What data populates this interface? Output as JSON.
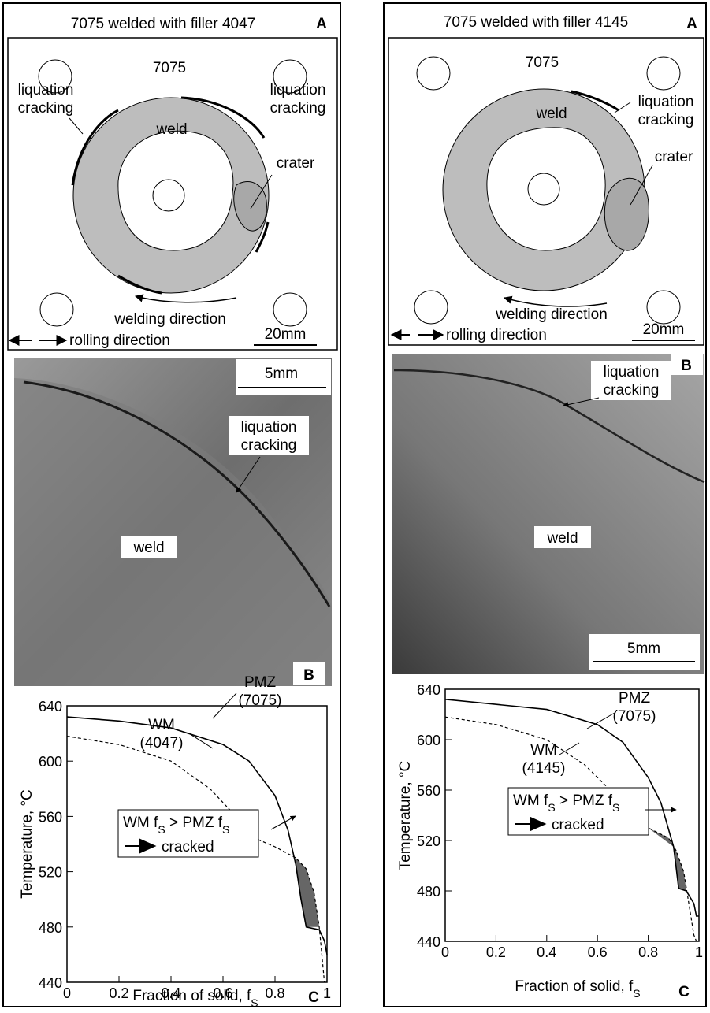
{
  "diagrams": [
    {
      "title": "7075 welded with filler 4047",
      "panel": "A",
      "base": "7075",
      "weld": "weld",
      "crack_left": [
        "liquation",
        "cracking"
      ],
      "crack_right": [
        "liquation",
        "cracking"
      ],
      "crater": "crater",
      "welding_direction": "welding direction",
      "rolling_direction": "rolling direction",
      "scale": "20mm"
    },
    {
      "title": "7075 welded with filler 4145",
      "panel": "A",
      "base": "7075",
      "weld": "weld",
      "crack_right": [
        "liquation",
        "cracking"
      ],
      "crater": "crater",
      "welding_direction": "welding direction",
      "rolling_direction": "rolling direction",
      "scale": "20mm"
    }
  ],
  "micrographs": [
    {
      "scale": "5mm",
      "crack": [
        "liquation",
        "cracking"
      ],
      "weld": "weld",
      "panel": "B"
    },
    {
      "scale": "5mm",
      "crack": [
        "liquation",
        "cracking"
      ],
      "weld": "weld",
      "panel": "B"
    }
  ],
  "chart_data": [
    {
      "type": "line",
      "panel": "C",
      "y_label": "Temperature, °C",
      "x_label": "Fraction of solid, f",
      "x_label_sub": "S",
      "xlim": [
        0,
        1
      ],
      "ylim": [
        440,
        640
      ],
      "xticks": [
        0,
        0.2,
        0.4,
        0.6,
        0.8,
        1
      ],
      "yticks": [
        440,
        480,
        520,
        560,
        600,
        640
      ],
      "series": [
        {
          "name": "PMZ",
          "note": "(7075)",
          "dash": false,
          "x": [
            0,
            0.2,
            0.4,
            0.6,
            0.7,
            0.8,
            0.85,
            0.88,
            0.9,
            0.92,
            0.97,
            0.99,
            1.0
          ],
          "values": [
            632,
            629,
            624,
            612,
            600,
            575,
            550,
            525,
            500,
            480,
            478,
            470,
            460
          ]
        },
        {
          "name": "WM",
          "note": "(4047)",
          "dash": true,
          "x": [
            0,
            0.2,
            0.4,
            0.55,
            0.65,
            0.7,
            0.8,
            0.88,
            0.92,
            0.95,
            0.97,
            0.98,
            0.99
          ],
          "values": [
            618,
            612,
            600,
            580,
            560,
            546,
            538,
            530,
            522,
            505,
            480,
            460,
            440
          ]
        }
      ],
      "criterion": [
        "WM f",
        "S",
        " > PMZ f",
        "S"
      ],
      "cracked": "cracked"
    },
    {
      "type": "line",
      "panel": "C",
      "y_label": "Temperature, °C",
      "x_label": "Fraction of solid, f",
      "x_label_sub": "S",
      "xlim": [
        0,
        1
      ],
      "ylim": [
        440,
        640
      ],
      "xticks": [
        0,
        0.2,
        0.4,
        0.6,
        0.8,
        1
      ],
      "yticks": [
        440,
        480,
        520,
        560,
        600,
        640
      ],
      "series": [
        {
          "name": "PMZ",
          "note": "(7075)",
          "dash": false,
          "x": [
            0,
            0.4,
            0.6,
            0.7,
            0.8,
            0.85,
            0.9,
            0.92,
            0.95,
            0.98,
            0.99,
            1.0
          ],
          "values": [
            632,
            624,
            612,
            598,
            570,
            550,
            515,
            482,
            480,
            470,
            460,
            460
          ]
        },
        {
          "name": "WM",
          "note": "(4145)",
          "dash": true,
          "x": [
            0,
            0.2,
            0.4,
            0.55,
            0.65,
            0.73,
            0.8,
            0.88,
            0.91,
            0.94,
            0.96,
            0.98,
            0.99
          ],
          "values": [
            618,
            612,
            600,
            580,
            560,
            536,
            530,
            522,
            512,
            495,
            470,
            445,
            440
          ]
        }
      ],
      "criterion": [
        "WM f",
        "S",
        " > PMZ f",
        "S"
      ],
      "cracked": "cracked"
    }
  ]
}
